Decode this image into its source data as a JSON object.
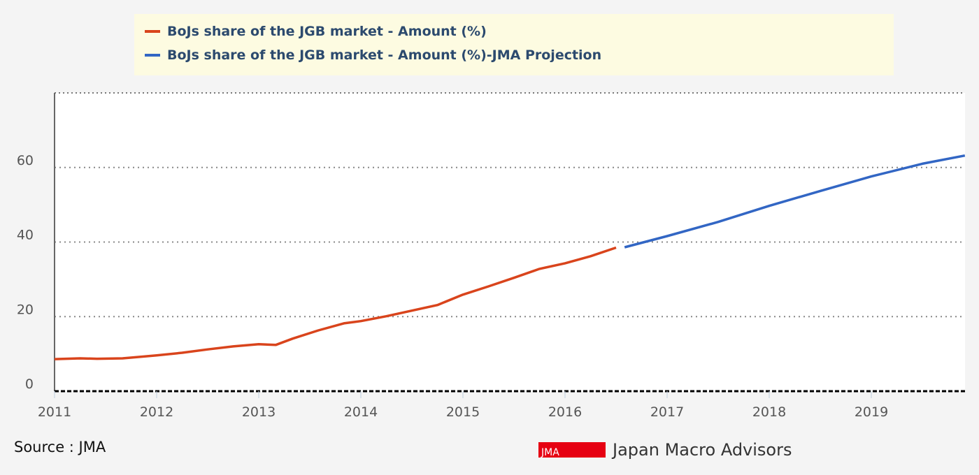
{
  "chart_data": {
    "type": "line",
    "title": "",
    "xlabel": "",
    "ylabel": "",
    "ylim": [
      0,
      80
    ],
    "xlim": [
      "2011-01",
      "2019-12"
    ],
    "yticks": [
      0,
      20,
      40,
      60
    ],
    "xticks": [
      "2011",
      "2012",
      "2013",
      "2014",
      "2015",
      "2016",
      "2017",
      "2018",
      "2019"
    ],
    "grid": "horizontal dotted",
    "legend_position": "top",
    "series": [
      {
        "name": "BoJs share of the JGB market - Amount (%)",
        "color": "#d9441c",
        "points": [
          [
            "2011-01",
            8.6
          ],
          [
            "2011-04",
            8.8
          ],
          [
            "2011-06",
            8.7
          ],
          [
            "2011-09",
            8.8
          ],
          [
            "2012-01",
            9.6
          ],
          [
            "2012-04",
            10.3
          ],
          [
            "2012-07",
            11.2
          ],
          [
            "2012-10",
            12.0
          ],
          [
            "2013-01",
            12.6
          ],
          [
            "2013-03",
            12.4
          ],
          [
            "2013-05",
            14.1
          ],
          [
            "2013-08",
            16.3
          ],
          [
            "2013-11",
            18.2
          ],
          [
            "2014-01",
            18.8
          ],
          [
            "2014-04",
            20.1
          ],
          [
            "2014-07",
            21.6
          ],
          [
            "2014-10",
            23.1
          ],
          [
            "2015-01",
            25.9
          ],
          [
            "2015-04",
            28.1
          ],
          [
            "2015-07",
            30.4
          ],
          [
            "2015-10",
            32.8
          ],
          [
            "2016-01",
            34.3
          ],
          [
            "2016-04",
            36.2
          ],
          [
            "2016-07",
            38.5
          ]
        ]
      },
      {
        "name": "BoJs share of the JGB market - Amount (%)-JMA Projection",
        "color": "#3266c4",
        "points": [
          [
            "2016-08",
            38.6
          ],
          [
            "2017-01",
            41.6
          ],
          [
            "2017-07",
            45.4
          ],
          [
            "2018-01",
            49.7
          ],
          [
            "2018-07",
            53.7
          ],
          [
            "2019-01",
            57.6
          ],
          [
            "2019-07",
            61.0
          ],
          [
            "2019-12",
            63.2
          ]
        ]
      }
    ]
  },
  "footer": {
    "source": "Source : JMA",
    "logo_mark": "JMA",
    "logo_text": "Japan Macro Advisors"
  }
}
